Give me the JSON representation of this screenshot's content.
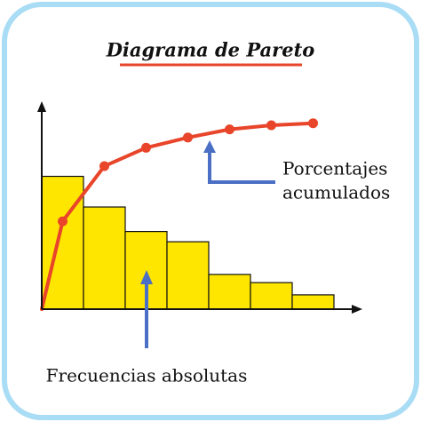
{
  "chart_data": {
    "type": "pareto",
    "title": "Diagrama de Pareto",
    "categories": [
      null,
      null,
      null,
      null,
      null,
      null,
      null
    ],
    "series": [
      {
        "color": "#ffe600",
        "values": [
          65,
          50,
          38,
          33,
          17,
          13,
          7
        ]
      },
      {
        "color": "#e8452a",
        "values": [
          43,
          70,
          79,
          84,
          88,
          90,
          91
        ]
      }
    ],
    "ylim": [
      0,
      100
    ],
    "line_label": [
      "Porcentajes",
      "acumulados"
    ],
    "bar_label": "Frecuencias absolutas",
    "annotation_color": "#4a6fc4"
  }
}
